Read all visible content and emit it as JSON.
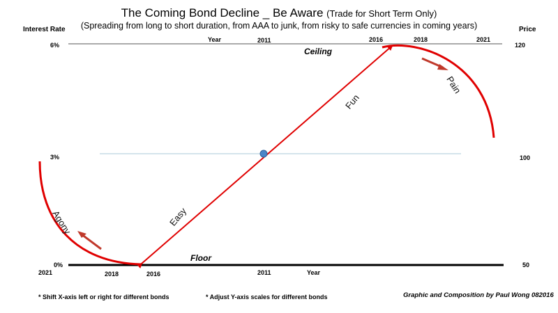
{
  "title": {
    "main": "The Coming Bond Decline _ Be Aware",
    "paren": "(Trade for Short Term Only)",
    "subtitle": "(Spreading from long to short duration, from AAA to junk, from risky to safe currencies in coming years)"
  },
  "left_axis": {
    "label": "Interest Rate",
    "ticks": [
      "6%",
      "3%",
      "0%"
    ]
  },
  "right_axis": {
    "label": "Price",
    "ticks": [
      "120",
      "100",
      "50"
    ]
  },
  "top_axis": {
    "label": "Year",
    "years": [
      "2011",
      "2016",
      "2018",
      "2021"
    ]
  },
  "bottom_axis": {
    "label": "Year",
    "years": [
      "2021",
      "2018",
      "2016",
      "2011"
    ]
  },
  "boundaries": {
    "ceiling": "Ceiling",
    "floor": "Floor"
  },
  "phases": {
    "agony": "Agony",
    "easy": "Easy",
    "fun": "Fun",
    "pain": "Pain"
  },
  "notes": {
    "shift_x": "* Shift X-axis left or right for different bonds",
    "adjust_y": "* Adjust Y-axis scales for different bonds"
  },
  "credit": "Graphic and Composition by Paul Wong 082016",
  "colors": {
    "curve": "#e00000",
    "arrow": "#c0392b",
    "midline": "#a8c8d8",
    "marker": "#4a86c8",
    "floor_line": "#000000",
    "ceiling_line": "#555555"
  }
}
